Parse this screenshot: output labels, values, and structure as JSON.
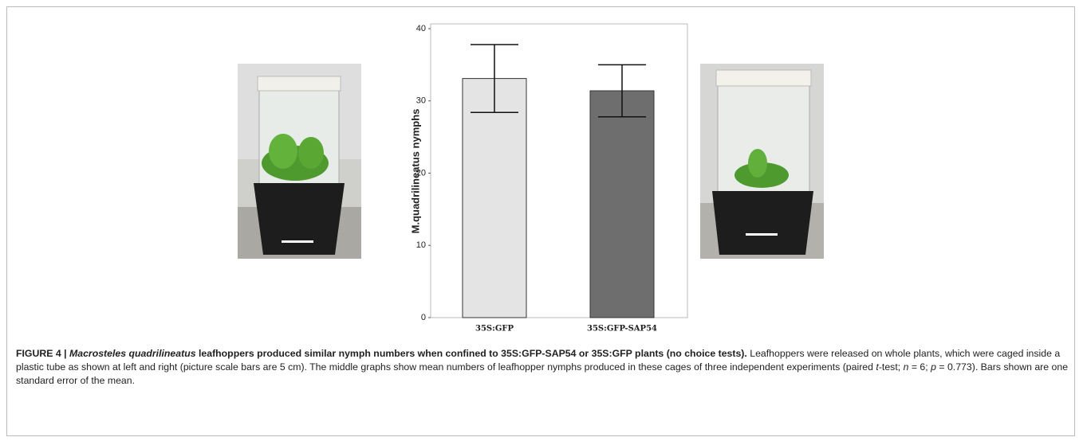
{
  "chart_data": {
    "type": "bar",
    "ylabel": "M.quadrilineatus nymphs",
    "categories": [
      "35S:GFP",
      "35S:GFP-SAP54"
    ],
    "values": [
      33.1,
      31.4
    ],
    "errors": [
      4.7,
      3.6
    ],
    "colors": [
      "#e4e4e4",
      "#6e6e6e"
    ],
    "ylim": [
      0,
      40
    ],
    "yticks": [
      0,
      10,
      20,
      30,
      40
    ],
    "grid": false
  },
  "caption": {
    "figure_label": "FIGURE 4 |",
    "title_species": "Macrosteles quadrilineatus",
    "title_rest": "leafhoppers produced similar nymph numbers when confined to 35S:GFP-SAP54 or 35S:GFP plants (no choice tests).",
    "body": [
      "Leafhoppers were released on whole plants, which were caged inside a plastic tube as shown at left and right (picture scale bars are 5 cm). The middle graphs show mean numbers of leafhopper nymphs produced in these cages of three independent experiments (paired ",
      "t",
      "-test; ",
      "n",
      " = 6; ",
      "p",
      " = 0.773). Bars shown are one standard error of the mean."
    ]
  }
}
